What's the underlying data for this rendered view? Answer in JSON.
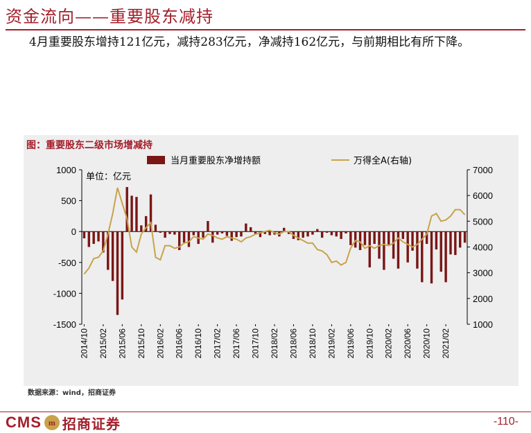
{
  "page": {
    "title": "资金流向——重要股东减持",
    "summary": "4月重要股东增持121亿元，减持283亿元，净减持162亿元，与前期相比有所下降。",
    "chart_caption": "图：重要股东二级市场增减持",
    "source": "数据来源：wind，招商证券",
    "brand_latin": "CMS",
    "brand_logo_text": "m",
    "brand_cn": "招商证券",
    "page_number": "-110-"
  },
  "colors": {
    "accent": "#a31f2b",
    "bar": "#7a1616",
    "line": "#c8a24a",
    "panel": "#eeeeee"
  },
  "chart_data": {
    "type": "bar",
    "unit_label": "单位：亿元",
    "legend_position": "top",
    "grid": false,
    "x_tick_labels": [
      "2014/10",
      "2015/02",
      "2015/06",
      "2015/10",
      "2016/02",
      "2016/06",
      "2016/10",
      "2017/02",
      "2017/06",
      "2017/10",
      "2018/02",
      "2018/06",
      "2018/10",
      "2019/02",
      "2019/06",
      "2019/10",
      "2020/02",
      "2020/06",
      "2020/10",
      "2021/02"
    ],
    "ylim_left": [
      -1500,
      1000
    ],
    "yticks_left": [
      "1000",
      "500",
      "0",
      "-500",
      "-1000",
      "-1500"
    ],
    "ylim_right": [
      1000,
      7000
    ],
    "yticks_right": [
      "7000",
      "6000",
      "5000",
      "4000",
      "3000",
      "2000",
      "1000"
    ],
    "series": [
      {
        "name": "当月重要股东净增持额",
        "type": "bar",
        "axis": "left",
        "values": [
          -110,
          -250,
          -200,
          -160,
          -340,
          -620,
          -800,
          -1350,
          -1100,
          720,
          580,
          560,
          100,
          250,
          600,
          110,
          -20,
          -100,
          -40,
          -50,
          -300,
          -180,
          -250,
          -60,
          -200,
          -100,
          170,
          -180,
          -50,
          -30,
          -70,
          -150,
          -90,
          -80,
          130,
          70,
          -50,
          -90,
          -40,
          -60,
          -50,
          -80,
          60,
          -40,
          -120,
          -140,
          -100,
          -80,
          -50,
          40,
          -100,
          -20,
          -60,
          -80,
          -120,
          -30,
          -220,
          -260,
          -300,
          -220,
          -580,
          -200,
          -440,
          -620,
          -210,
          -440,
          -600,
          -120,
          -500,
          -310,
          -600,
          -820,
          -200,
          -840,
          -290,
          -650,
          -820,
          -370,
          -380,
          -260,
          -180
        ]
      },
      {
        "name": "万得全A(右轴)",
        "type": "line",
        "axis": "right",
        "values": [
          2950,
          3180,
          3550,
          3600,
          3850,
          4500,
          5300,
          6300,
          5700,
          5100,
          4000,
          3800,
          4500,
          4750,
          4950,
          3600,
          3500,
          4050,
          4050,
          3950,
          4000,
          4150,
          4200,
          4400,
          4350,
          4300,
          4500,
          4450,
          4350,
          4300,
          4400,
          4350,
          4300,
          4200,
          4350,
          4400,
          4500,
          4550,
          4600,
          4650,
          4550,
          4500,
          4600,
          4600,
          4450,
          4350,
          4250,
          4150,
          4150,
          3900,
          3850,
          3700,
          3400,
          3450,
          3300,
          3400,
          3950,
          4250,
          4200,
          3950,
          4050,
          3950,
          4050,
          4100,
          4050,
          4150,
          4350,
          4200,
          4100,
          4000,
          4100,
          4300,
          4500,
          5200,
          5300,
          5000,
          5050,
          5200,
          5450,
          5450,
          5250
        ]
      }
    ]
  }
}
